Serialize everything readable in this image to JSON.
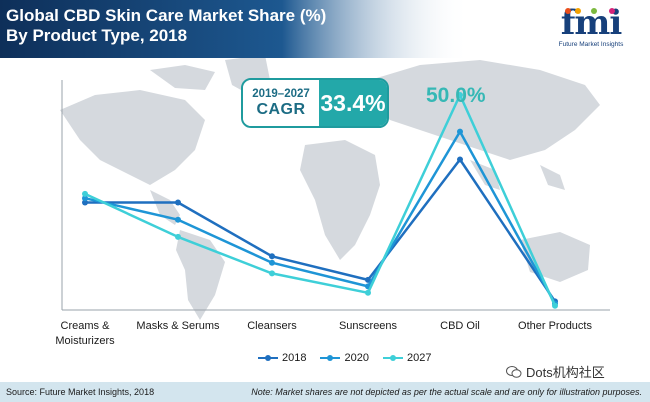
{
  "header": {
    "title": "Global CBD Skin Care Market Share (%)",
    "subtitle": "By Product Type, 2018"
  },
  "logo": {
    "mark": "fmi",
    "tagline": "Future Market Insights"
  },
  "cagr": {
    "years": "2019–2027",
    "label": "CAGR",
    "value": "33.4%"
  },
  "peak_label": "50.0%",
  "chart_data": {
    "type": "line",
    "title": "Global CBD Skin Care Market Share (%) By Product Type, 2018",
    "categories": [
      "Creams & Moisturizers",
      "Masks & Serums",
      "Cleansers",
      "Sunscreens",
      "CBD Oil",
      "Other Products"
    ],
    "category_lines": [
      [
        "Creams &",
        "Moisturizers"
      ],
      [
        "Masks & Serums"
      ],
      [
        "Cleansers"
      ],
      [
        "Sunscreens"
      ],
      [
        "CBD Oil"
      ],
      [
        "Other Products"
      ]
    ],
    "series": [
      {
        "name": "2018",
        "color": "#1f6fbf",
        "values": [
          25.0,
          25.0,
          12.5,
          7.0,
          35.0,
          2.0
        ]
      },
      {
        "name": "2020",
        "color": "#1e95d6",
        "values": [
          26.0,
          21.0,
          11.0,
          5.5,
          41.5,
          1.5
        ]
      },
      {
        "name": "2027",
        "color": "#3ecfd8",
        "values": [
          27.0,
          17.0,
          8.5,
          4.0,
          50.0,
          1.0
        ]
      }
    ],
    "ylim": [
      0,
      60
    ],
    "xlabel": "",
    "ylabel": "",
    "annotations": [
      "50.0%"
    ]
  },
  "footer": {
    "source": "Source: Future Market Insights, 2018",
    "note": "Note: Market shares are not depicted as per the actual scale and are only for illustration purposes."
  },
  "watermark": "Dots机构社区",
  "colors": {
    "header_bg": "#1c4f80",
    "accent": "#23a8a9",
    "footer_bg": "#d3e5ee"
  }
}
